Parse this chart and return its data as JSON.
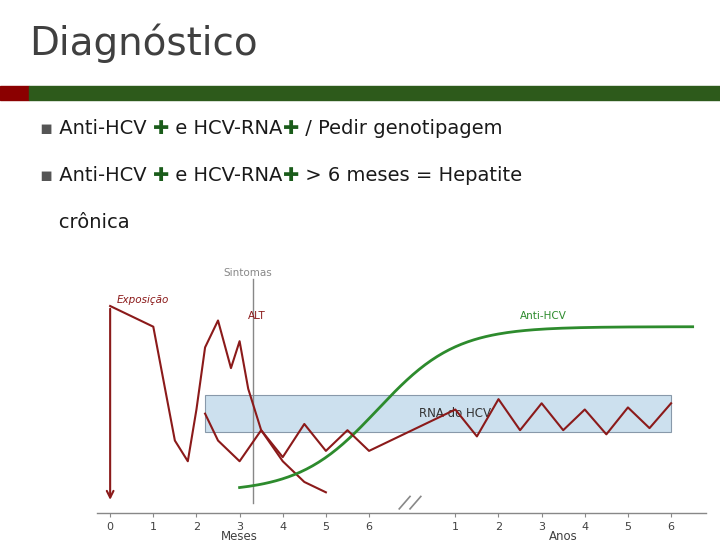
{
  "title": "Diagnóstico",
  "title_fontsize": 28,
  "title_color": "#404040",
  "bg_color": "#ffffff",
  "header_bar_red": "#8B0000",
  "header_bar_green": "#2d5a1b",
  "cross_color": "#1a5c1a",
  "text_color": "#1a1a1a",
  "bullet_color": "#555555",
  "text_fontsize": 14,
  "exposicao_color": "#8B1a1a",
  "alt_color": "#8B1a1a",
  "antihcv_color": "#2d8b2d",
  "rna_color": "#8B1a1a",
  "sintomas_color": "#888888",
  "rna_box_facecolor": "#cce0ee",
  "rna_box_edgecolor": "#8899aa",
  "chart_label_color": "#404040",
  "axis_color": "#888888",
  "meses_ticks": [
    0,
    1,
    2,
    3,
    4,
    5,
    6
  ],
  "anos_ticks_offset": [
    8,
    9,
    10,
    11,
    12,
    13
  ],
  "meses_labels": [
    "0",
    "1",
    "2",
    "3",
    "4",
    "5",
    "6"
  ],
  "anos_labels": [
    "1",
    "2",
    "3",
    "4",
    "5",
    "6"
  ]
}
